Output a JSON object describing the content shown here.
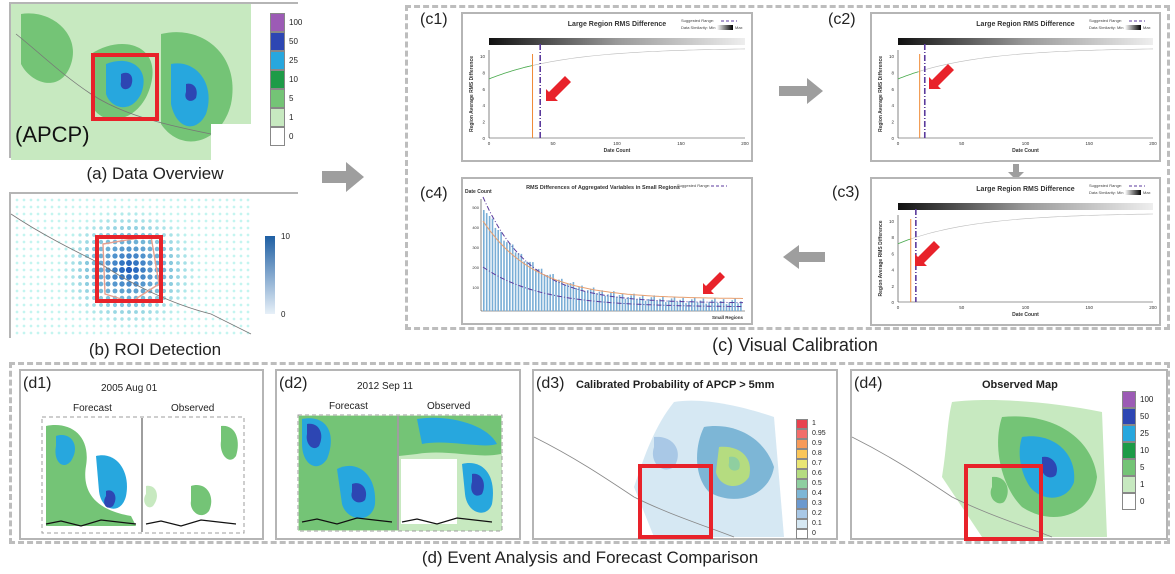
{
  "panels": {
    "a": {
      "tag": "(APCP)",
      "caption": "(a) Data Overview",
      "legend": [
        "100",
        "50",
        "25",
        "10",
        "5",
        "1",
        "0"
      ],
      "legend_colors": [
        "#9c5bb5",
        "#2d46b3",
        "#27a7de",
        "#1d9b47",
        "#74c476",
        "#c7e9c0",
        "#ffffff"
      ]
    },
    "b": {
      "caption": "(b) ROI Detection",
      "legend_max": "10",
      "legend_min": "0"
    },
    "c": {
      "caption": "(c) Visual Calibration",
      "c1": {
        "tag": "(c1)",
        "title": "Large Region RMS Difference",
        "suggested": "Suggested Range:",
        "similarity": "Data Similarity: Min",
        "max": "Max",
        "ylabel": "Region Average RMS Difference",
        "xlabel": "Date Count",
        "xticks": [
          "0",
          "50",
          "100",
          "150",
          "200"
        ],
        "yticks": [
          "10",
          "8",
          "6",
          "4",
          "2",
          "0"
        ]
      },
      "c2": {
        "tag": "(c2)",
        "title": "Large Region RMS Difference",
        "suggested": "Suggested Range:",
        "similarity": "Data Similarity: Min",
        "max": "Max",
        "ylabel": "Region Average RMS Difference",
        "xlabel": "Date Count",
        "xticks": [
          "0",
          "50",
          "100",
          "150",
          "200"
        ],
        "yticks": [
          "10",
          "8",
          "6",
          "4",
          "2",
          "0"
        ]
      },
      "c3": {
        "tag": "(c3)",
        "title": "Large Region RMS Difference",
        "suggested": "Suggested Range:",
        "similarity": "Data Similarity: Min",
        "max": "Max",
        "ylabel": "Region Average RMS Difference",
        "xlabel": "Date Count",
        "xticks": [
          "0",
          "50",
          "100",
          "150",
          "200"
        ],
        "yticks": [
          "10",
          "8",
          "6",
          "4",
          "2",
          "0"
        ]
      },
      "c4": {
        "tag": "(c4)",
        "title": "RMS Differences of Aggregated Variables in Small Regions",
        "suggested": "Suggested Range:",
        "ylabel": "Date Count",
        "xlabel": "Small Regions",
        "yticks": [
          "500",
          "400",
          "300",
          "200",
          "100"
        ]
      }
    },
    "d": {
      "caption": "(d) Event Analysis and Forecast Comparison",
      "d1": {
        "tag": "(d1)",
        "date": "2005 Aug 01",
        "forecast": "Forecast",
        "observed": "Observed"
      },
      "d2": {
        "tag": "(d2)",
        "date": "2012 Sep 11",
        "forecast": "Forecast",
        "observed": "Observed"
      },
      "d3": {
        "tag": "(d3)",
        "title": "Calibrated Probability of APCP > 5mm",
        "legend": [
          "1",
          "0.95",
          "0.9",
          "0.8",
          "0.7",
          "0.6",
          "0.5",
          "0.4",
          "0.3",
          "0.2",
          "0.1",
          "0"
        ],
        "legend_colors": [
          "#e8424f",
          "#f26d6a",
          "#f79a59",
          "#fbc659",
          "#e9e574",
          "#b5dc80",
          "#8fcfa0",
          "#7db6d6",
          "#6b99cf",
          "#a9c8e6",
          "#d6e8f3",
          "#ffffff"
        ]
      },
      "d4": {
        "tag": "(d4)",
        "title": "Observed Map",
        "legend": [
          "100",
          "50",
          "25",
          "10",
          "5",
          "1",
          "0"
        ],
        "legend_colors": [
          "#9c5bb5",
          "#2d46b3",
          "#27a7de",
          "#1d9b47",
          "#74c476",
          "#c7e9c0",
          "#ffffff"
        ]
      }
    }
  },
  "colors": {
    "red": "#e8222a",
    "purple_dash": "#5b3a9c",
    "orange": "#f08a35",
    "arrow_gray": "#9e9e9e"
  }
}
